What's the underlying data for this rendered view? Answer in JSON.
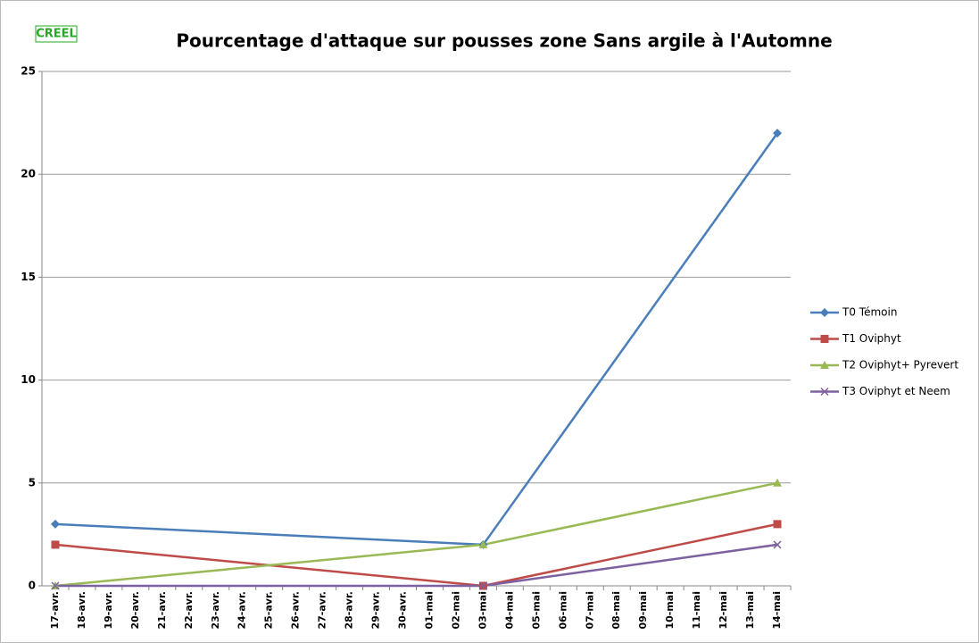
{
  "chart_data": {
    "type": "line",
    "logo": "CREEL",
    "title": "Pourcentage d'attaque sur pousses zone Sans argile à l'Automne",
    "categories": [
      "17-avr.",
      "18-avr.",
      "19-avr.",
      "20-avr.",
      "21-avr.",
      "22-avr.",
      "23-avr.",
      "24-avr.",
      "25-avr.",
      "26-avr.",
      "27-avr.",
      "28-avr.",
      "29-avr.",
      "30-avr.",
      "01-mai",
      "02-mai",
      "03-mai",
      "04-mai",
      "05-mai",
      "06-mai",
      "07-mai",
      "08-mai",
      "09-mai",
      "10-mai",
      "11-mai",
      "12-mai",
      "13-mai",
      "14-mai"
    ],
    "series": [
      {
        "name": "T0 Témoin",
        "color": "#4a7ebb",
        "marker": "diamond",
        "values": [
          3,
          null,
          null,
          null,
          null,
          null,
          null,
          null,
          null,
          null,
          null,
          null,
          null,
          null,
          null,
          null,
          2,
          null,
          null,
          null,
          null,
          null,
          null,
          null,
          null,
          null,
          null,
          22
        ]
      },
      {
        "name": "T1 Oviphyt",
        "color": "#be4b48",
        "marker": "square",
        "values": [
          2,
          null,
          null,
          null,
          null,
          null,
          null,
          null,
          null,
          null,
          null,
          null,
          null,
          null,
          null,
          null,
          0,
          null,
          null,
          null,
          null,
          null,
          null,
          null,
          null,
          null,
          null,
          3
        ]
      },
      {
        "name": "T2 Oviphyt+ Pyrevert",
        "color": "#98b954",
        "marker": "triangle",
        "values": [
          0,
          null,
          null,
          null,
          null,
          null,
          null,
          null,
          null,
          null,
          null,
          null,
          null,
          null,
          null,
          null,
          2,
          null,
          null,
          null,
          null,
          null,
          null,
          null,
          null,
          null,
          null,
          5
        ]
      },
      {
        "name": "T3 Oviphyt et Neem",
        "color": "#7d60a0",
        "marker": "x",
        "values": [
          0,
          null,
          null,
          null,
          null,
          null,
          null,
          null,
          null,
          null,
          null,
          null,
          null,
          null,
          null,
          null,
          0,
          null,
          null,
          null,
          null,
          null,
          null,
          null,
          null,
          null,
          null,
          2
        ]
      }
    ],
    "connect_gaps": true,
    "ylim": [
      0,
      25
    ],
    "yticks": [
      0,
      5,
      10,
      15,
      20,
      25
    ],
    "grid": true,
    "legend": "right"
  }
}
